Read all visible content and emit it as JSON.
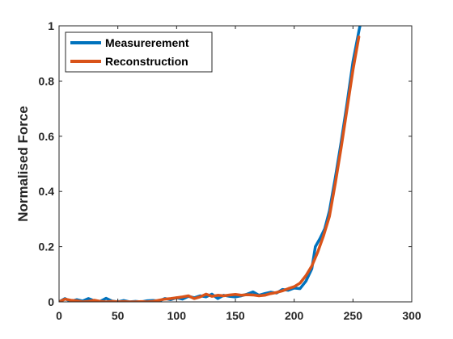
{
  "chart_data": {
    "type": "line",
    "title": "",
    "xlabel": "",
    "ylabel": "Normalised Force",
    "xlim": [
      0,
      300
    ],
    "ylim": [
      0,
      1
    ],
    "xticks": [
      "0",
      "50",
      "100",
      "150",
      "200",
      "250",
      "300"
    ],
    "yticks": [
      "0",
      "0.2",
      "0.4",
      "0.6",
      "0.8",
      "1"
    ],
    "grid": false,
    "legend_position": "top-left",
    "series": [
      {
        "name": "Measurerement",
        "color": "#0072BD",
        "x": [
          0,
          5,
          10,
          15,
          20,
          25,
          30,
          35,
          40,
          45,
          50,
          55,
          60,
          65,
          70,
          75,
          80,
          85,
          90,
          95,
          100,
          105,
          110,
          115,
          120,
          125,
          130,
          135,
          140,
          145,
          150,
          155,
          160,
          165,
          170,
          175,
          180,
          185,
          190,
          195,
          200,
          205,
          210,
          215,
          218,
          222,
          226,
          230,
          235,
          240,
          245,
          250,
          255,
          257
        ],
        "y": [
          0.0,
          0.012,
          0.002,
          0.008,
          0.003,
          0.012,
          0.004,
          0.002,
          0.013,
          0.003,
          0.0,
          0.005,
          0.0,
          0.002,
          0.0,
          0.004,
          0.005,
          0.003,
          0.012,
          0.008,
          0.015,
          0.01,
          0.02,
          0.015,
          0.022,
          0.018,
          0.028,
          0.012,
          0.024,
          0.02,
          0.018,
          0.022,
          0.028,
          0.036,
          0.024,
          0.03,
          0.035,
          0.032,
          0.045,
          0.042,
          0.05,
          0.048,
          0.075,
          0.12,
          0.2,
          0.23,
          0.265,
          0.33,
          0.45,
          0.58,
          0.72,
          0.87,
          0.98,
          1.02
        ]
      },
      {
        "name": "Reconstruction",
        "color": "#D95319",
        "x": [
          0,
          5,
          10,
          15,
          20,
          25,
          30,
          35,
          40,
          45,
          50,
          55,
          60,
          65,
          70,
          75,
          80,
          85,
          90,
          95,
          100,
          105,
          110,
          115,
          120,
          125,
          130,
          135,
          140,
          145,
          150,
          155,
          160,
          165,
          170,
          175,
          180,
          185,
          190,
          195,
          200,
          205,
          210,
          215,
          220,
          225,
          230,
          235,
          240,
          245,
          250,
          255
        ],
        "y": [
          0.0,
          0.01,
          0.006,
          0.004,
          0.0,
          0.002,
          0.006,
          0.002,
          0.0,
          0.002,
          0.0,
          0.001,
          0.0,
          0.0,
          0.001,
          0.0,
          0.002,
          0.006,
          0.01,
          0.012,
          0.015,
          0.018,
          0.022,
          0.012,
          0.018,
          0.028,
          0.02,
          0.024,
          0.022,
          0.025,
          0.027,
          0.024,
          0.026,
          0.025,
          0.022,
          0.024,
          0.03,
          0.034,
          0.04,
          0.048,
          0.055,
          0.068,
          0.095,
          0.13,
          0.18,
          0.24,
          0.31,
          0.43,
          0.56,
          0.7,
          0.84,
          0.96
        ]
      }
    ]
  }
}
